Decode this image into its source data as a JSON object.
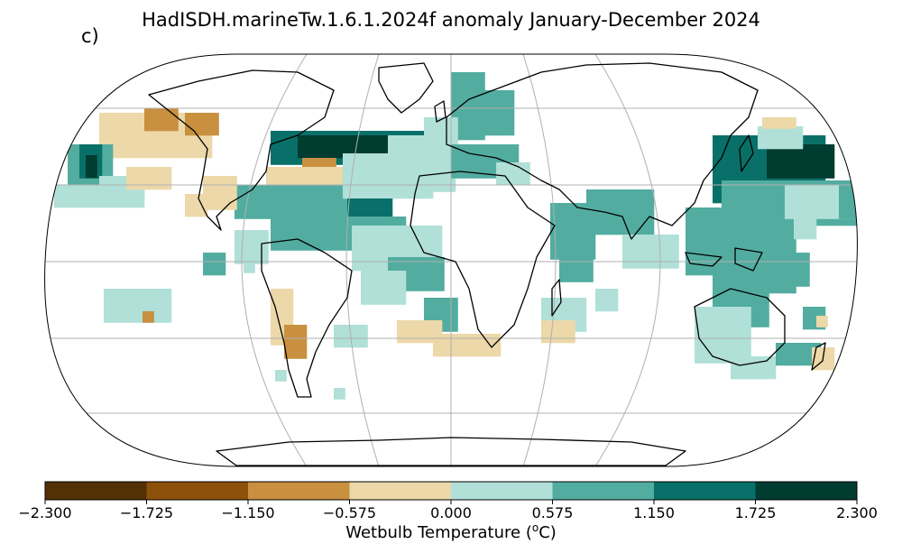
{
  "title": "HadISDH.marineTw.1.6.1.2024f anomaly January-December 2024",
  "panel_label": "c)",
  "colorbar": {
    "label_text": "Wetbulb Temperature (",
    "label_sup": "o",
    "label_end": "C)",
    "ticks": [
      "−2.300",
      "−1.725",
      "−1.150",
      "−0.575",
      "0.000",
      "0.575",
      "1.150",
      "1.725",
      "2.300"
    ],
    "colors": [
      "#543005",
      "#8c510a",
      "#c8903f",
      "#ecd8a8",
      "#b0e0d8",
      "#52ada0",
      "#087068",
      "#003c30"
    ]
  },
  "map": {
    "projection": "Robinson",
    "gridlines": true,
    "grid_color": "#b0b0b0",
    "coastline_color": "#000000"
  }
}
